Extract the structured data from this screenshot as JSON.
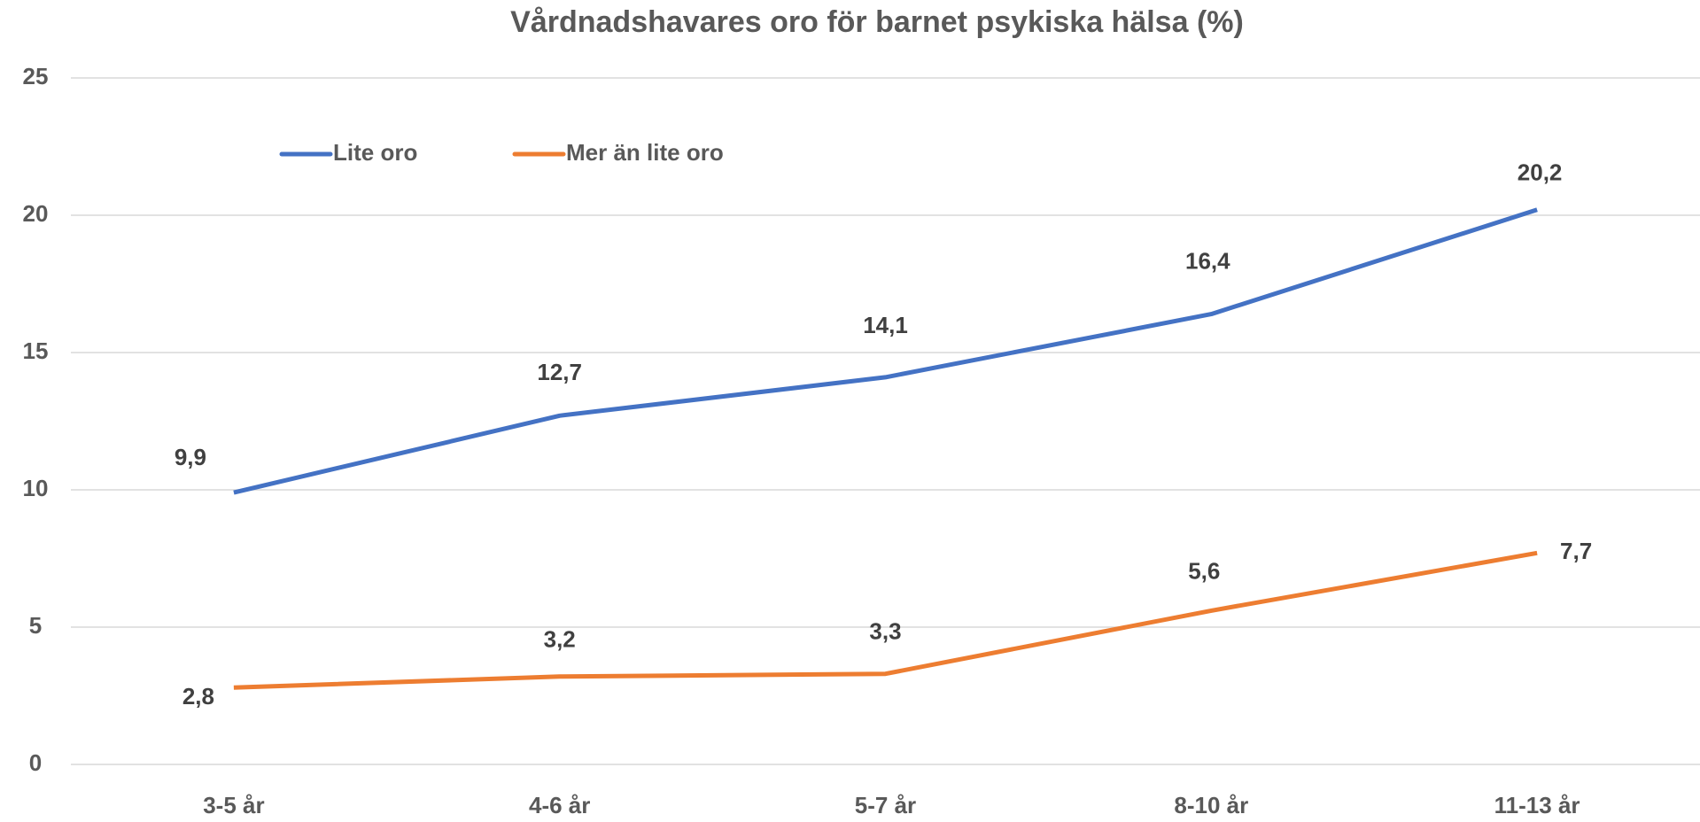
{
  "chart_data": {
    "type": "line",
    "title": "Vårdnadshavares oro för barnet psykiska hälsa (%)",
    "categories": [
      "3-5 år",
      "4-6 år",
      "5-7 år",
      "8-10 år",
      "11-13 år"
    ],
    "series": [
      {
        "name": "Lite oro",
        "color": "#4472c4",
        "values": [
          9.9,
          12.7,
          14.1,
          16.4,
          20.2
        ],
        "value_labels": [
          "9,9",
          "12,7",
          "14,1",
          "16,4",
          "20,2"
        ]
      },
      {
        "name": "Mer än lite oro",
        "color": "#ed7d31",
        "values": [
          2.8,
          3.2,
          3.3,
          5.6,
          7.7
        ],
        "value_labels": [
          "2,8",
          "3,2",
          "3,3",
          "5,6",
          "7,7"
        ]
      }
    ],
    "ylim": [
      0,
      25
    ],
    "yticks": [
      0,
      5,
      10,
      15,
      20,
      25
    ],
    "grid": true,
    "legend": "top-left"
  }
}
